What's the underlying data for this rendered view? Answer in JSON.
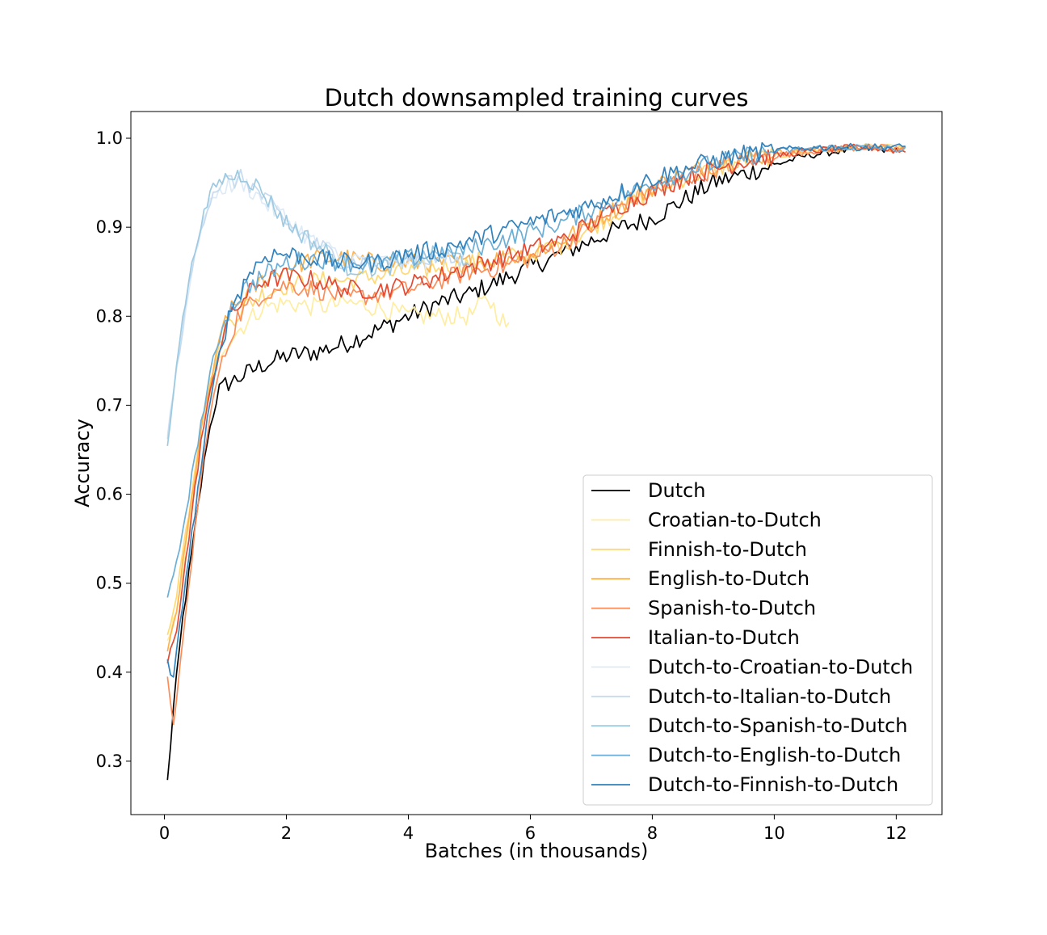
{
  "chart_data": {
    "type": "line",
    "title": "Dutch downsampled training curves",
    "xlabel": "Batches (in thousands)",
    "ylabel": "Accuracy",
    "xlim": [
      -0.55,
      12.75
    ],
    "ylim": [
      0.24,
      1.03
    ],
    "xticks": [
      0,
      2,
      4,
      6,
      8,
      10,
      12
    ],
    "xtick_labels": [
      "0",
      "2",
      "4",
      "6",
      "8",
      "10",
      "12"
    ],
    "yticks": [
      0.3,
      0.4,
      0.5,
      0.6,
      0.7,
      0.8,
      0.9,
      1.0
    ],
    "ytick_labels": [
      "0.3",
      "0.4",
      "0.5",
      "0.6",
      "0.7",
      "0.8",
      "0.9",
      "1.0"
    ],
    "grid": false,
    "legend_position": "lower-right",
    "series": [
      {
        "name": "Dutch",
        "color": "#000000",
        "x_end": 12.15,
        "anchors": [
          [
            0.05,
            0.277
          ],
          [
            0.15,
            0.36
          ],
          [
            0.3,
            0.46
          ],
          [
            0.5,
            0.56
          ],
          [
            0.7,
            0.66
          ],
          [
            0.9,
            0.72
          ],
          [
            1.2,
            0.73
          ],
          [
            1.6,
            0.745
          ],
          [
            2,
            0.755
          ],
          [
            2.5,
            0.76
          ],
          [
            3,
            0.77
          ],
          [
            3.5,
            0.785
          ],
          [
            4,
            0.8
          ],
          [
            4.5,
            0.815
          ],
          [
            5,
            0.825
          ],
          [
            5.5,
            0.84
          ],
          [
            6,
            0.855
          ],
          [
            6.5,
            0.87
          ],
          [
            7,
            0.885
          ],
          [
            7.5,
            0.9
          ],
          [
            8,
            0.91
          ],
          [
            8.5,
            0.93
          ],
          [
            9,
            0.95
          ],
          [
            9.5,
            0.96
          ],
          [
            10,
            0.97
          ],
          [
            10.5,
            0.98
          ],
          [
            11,
            0.985
          ],
          [
            11.5,
            0.988
          ],
          [
            12.15,
            0.987
          ]
        ]
      },
      {
        "name": "Croatian-to-Dutch",
        "color": "#ffeda0",
        "x_end": 5.65,
        "anchors": [
          [
            0.05,
            0.43
          ],
          [
            0.2,
            0.47
          ],
          [
            0.4,
            0.56
          ],
          [
            0.6,
            0.67
          ],
          [
            0.8,
            0.73
          ],
          [
            1,
            0.77
          ],
          [
            1.3,
            0.79
          ],
          [
            1.6,
            0.81
          ],
          [
            2,
            0.815
          ],
          [
            2.5,
            0.81
          ],
          [
            3,
            0.815
          ],
          [
            3.5,
            0.81
          ],
          [
            4,
            0.8
          ],
          [
            4.5,
            0.8
          ],
          [
            5,
            0.8
          ],
          [
            5.3,
            0.82
          ],
          [
            5.65,
            0.785
          ]
        ]
      },
      {
        "name": "Finnish-to-Dutch",
        "color": "#fed976",
        "x_end": 12.15,
        "anchors": [
          [
            0.05,
            0.44
          ],
          [
            0.2,
            0.49
          ],
          [
            0.4,
            0.58
          ],
          [
            0.6,
            0.68
          ],
          [
            0.8,
            0.74
          ],
          [
            1,
            0.79
          ],
          [
            1.3,
            0.81
          ],
          [
            1.6,
            0.825
          ],
          [
            2,
            0.835
          ],
          [
            2.5,
            0.84
          ],
          [
            3,
            0.84
          ],
          [
            3.5,
            0.845
          ],
          [
            4,
            0.85
          ],
          [
            4.5,
            0.855
          ],
          [
            5,
            0.86
          ],
          [
            5.5,
            0.865
          ],
          [
            6,
            0.87
          ],
          [
            6.5,
            0.88
          ],
          [
            7,
            0.9
          ],
          [
            7.5,
            0.92
          ],
          [
            8,
            0.94
          ],
          [
            8.5,
            0.955
          ],
          [
            9,
            0.965
          ],
          [
            9.5,
            0.975
          ],
          [
            10,
            0.98
          ],
          [
            10.5,
            0.985
          ],
          [
            11,
            0.988
          ],
          [
            11.5,
            0.99
          ],
          [
            12.15,
            0.988
          ]
        ]
      },
      {
        "name": "English-to-Dutch",
        "color": "#feb24c",
        "x_end": 12.15,
        "anchors": [
          [
            0.05,
            0.42
          ],
          [
            0.2,
            0.47
          ],
          [
            0.4,
            0.57
          ],
          [
            0.6,
            0.67
          ],
          [
            0.8,
            0.74
          ],
          [
            1,
            0.8
          ],
          [
            1.3,
            0.82
          ],
          [
            1.6,
            0.84
          ],
          [
            2,
            0.855
          ],
          [
            2.5,
            0.865
          ],
          [
            3,
            0.865
          ],
          [
            3.5,
            0.86
          ],
          [
            4,
            0.86
          ],
          [
            4.5,
            0.86
          ],
          [
            5,
            0.86
          ],
          [
            5.5,
            0.865
          ],
          [
            6,
            0.87
          ],
          [
            6.5,
            0.885
          ],
          [
            7,
            0.905
          ],
          [
            7.5,
            0.925
          ],
          [
            8,
            0.945
          ],
          [
            8.5,
            0.96
          ],
          [
            9,
            0.97
          ],
          [
            9.5,
            0.978
          ],
          [
            10,
            0.983
          ],
          [
            10.5,
            0.986
          ],
          [
            11,
            0.988
          ],
          [
            11.5,
            0.99
          ],
          [
            12.15,
            0.987
          ]
        ]
      },
      {
        "name": "Spanish-to-Dutch",
        "color": "#fc8d59",
        "x_end": 12.15,
        "anchors": [
          [
            0.05,
            0.39
          ],
          [
            0.15,
            0.345
          ],
          [
            0.3,
            0.43
          ],
          [
            0.5,
            0.56
          ],
          [
            0.7,
            0.67
          ],
          [
            0.9,
            0.74
          ],
          [
            1.2,
            0.8
          ],
          [
            1.6,
            0.825
          ],
          [
            2,
            0.835
          ],
          [
            2.5,
            0.83
          ],
          [
            3,
            0.82
          ],
          [
            3.5,
            0.825
          ],
          [
            4,
            0.83
          ],
          [
            4.5,
            0.84
          ],
          [
            5,
            0.85
          ],
          [
            5.5,
            0.855
          ],
          [
            6,
            0.865
          ],
          [
            6.5,
            0.88
          ],
          [
            7,
            0.9
          ],
          [
            7.5,
            0.925
          ],
          [
            8,
            0.94
          ],
          [
            8.5,
            0.955
          ],
          [
            9,
            0.965
          ],
          [
            9.5,
            0.975
          ],
          [
            10,
            0.98
          ],
          [
            10.5,
            0.985
          ],
          [
            11,
            0.988
          ],
          [
            11.5,
            0.99
          ],
          [
            12.15,
            0.988
          ]
        ]
      },
      {
        "name": "Italian-to-Dutch",
        "color": "#e34a33",
        "x_end": 12.15,
        "anchors": [
          [
            0.05,
            0.41
          ],
          [
            0.2,
            0.45
          ],
          [
            0.4,
            0.55
          ],
          [
            0.6,
            0.66
          ],
          [
            0.8,
            0.73
          ],
          [
            1,
            0.79
          ],
          [
            1.3,
            0.82
          ],
          [
            1.6,
            0.84
          ],
          [
            2,
            0.845
          ],
          [
            2.5,
            0.84
          ],
          [
            3,
            0.83
          ],
          [
            3.5,
            0.83
          ],
          [
            4,
            0.835
          ],
          [
            4.5,
            0.845
          ],
          [
            5,
            0.855
          ],
          [
            5.5,
            0.865
          ],
          [
            6,
            0.875
          ],
          [
            6.5,
            0.885
          ],
          [
            7,
            0.905
          ],
          [
            7.5,
            0.925
          ],
          [
            8,
            0.94
          ],
          [
            8.5,
            0.955
          ],
          [
            9,
            0.965
          ],
          [
            9.5,
            0.975
          ],
          [
            10,
            0.98
          ],
          [
            10.5,
            0.985
          ],
          [
            11,
            0.988
          ],
          [
            11.5,
            0.99
          ],
          [
            12.15,
            0.985
          ]
        ]
      },
      {
        "name": "Dutch-to-Croatian-to-Dutch",
        "color": "#deebf7",
        "x_end": 4.3,
        "anchors": [
          [
            0.05,
            0.67
          ],
          [
            0.2,
            0.74
          ],
          [
            0.4,
            0.83
          ],
          [
            0.6,
            0.9
          ],
          [
            0.8,
            0.935
          ],
          [
            1,
            0.945
          ],
          [
            1.3,
            0.95
          ],
          [
            1.6,
            0.93
          ],
          [
            2,
            0.91
          ],
          [
            2.5,
            0.88
          ],
          [
            3,
            0.865
          ],
          [
            3.5,
            0.86
          ],
          [
            4,
            0.865
          ],
          [
            4.3,
            0.86
          ]
        ]
      },
      {
        "name": "Dutch-to-Italian-to-Dutch",
        "color": "#c6dbef",
        "x_end": 4.9,
        "anchors": [
          [
            0.05,
            0.66
          ],
          [
            0.2,
            0.74
          ],
          [
            0.4,
            0.835
          ],
          [
            0.6,
            0.9
          ],
          [
            0.8,
            0.94
          ],
          [
            1,
            0.95
          ],
          [
            1.3,
            0.955
          ],
          [
            1.6,
            0.935
          ],
          [
            2,
            0.905
          ],
          [
            2.5,
            0.88
          ],
          [
            3,
            0.86
          ],
          [
            3.5,
            0.86
          ],
          [
            4,
            0.865
          ],
          [
            4.5,
            0.865
          ],
          [
            4.9,
            0.862
          ]
        ]
      },
      {
        "name": "Dutch-to-Spanish-to-Dutch",
        "color": "#9ecae1",
        "x_end": 5.0,
        "anchors": [
          [
            0.05,
            0.655
          ],
          [
            0.2,
            0.75
          ],
          [
            0.4,
            0.84
          ],
          [
            0.6,
            0.905
          ],
          [
            0.8,
            0.945
          ],
          [
            1,
            0.955
          ],
          [
            1.3,
            0.96
          ],
          [
            1.6,
            0.94
          ],
          [
            2,
            0.905
          ],
          [
            2.5,
            0.88
          ],
          [
            3,
            0.855
          ],
          [
            3.5,
            0.855
          ],
          [
            4,
            0.86
          ],
          [
            4.5,
            0.87
          ],
          [
            5,
            0.865
          ]
        ]
      },
      {
        "name": "Dutch-to-English-to-Dutch",
        "color": "#6baed6",
        "x_end": 12.15,
        "anchors": [
          [
            0.05,
            0.48
          ],
          [
            0.2,
            0.52
          ],
          [
            0.4,
            0.6
          ],
          [
            0.6,
            0.68
          ],
          [
            0.8,
            0.75
          ],
          [
            1,
            0.8
          ],
          [
            1.3,
            0.83
          ],
          [
            1.6,
            0.845
          ],
          [
            2,
            0.86
          ],
          [
            2.5,
            0.865
          ],
          [
            3,
            0.86
          ],
          [
            3.5,
            0.86
          ],
          [
            4,
            0.865
          ],
          [
            4.5,
            0.87
          ],
          [
            5,
            0.875
          ],
          [
            5.5,
            0.885
          ],
          [
            6,
            0.895
          ],
          [
            6.5,
            0.905
          ],
          [
            7,
            0.92
          ],
          [
            7.5,
            0.935
          ],
          [
            8,
            0.95
          ],
          [
            8.5,
            0.962
          ],
          [
            9,
            0.972
          ],
          [
            9.5,
            0.98
          ],
          [
            10,
            0.985
          ],
          [
            10.5,
            0.988
          ],
          [
            11,
            0.99
          ],
          [
            11.5,
            0.99
          ],
          [
            12.15,
            0.987
          ]
        ]
      },
      {
        "name": "Dutch-to-Finnish-to-Dutch",
        "color": "#3182bd",
        "x_end": 12.15,
        "anchors": [
          [
            0.05,
            0.41
          ],
          [
            0.15,
            0.39
          ],
          [
            0.3,
            0.48
          ],
          [
            0.5,
            0.58
          ],
          [
            0.7,
            0.68
          ],
          [
            0.9,
            0.76
          ],
          [
            1.1,
            0.81
          ],
          [
            1.4,
            0.85
          ],
          [
            1.7,
            0.87
          ],
          [
            2,
            0.87
          ],
          [
            2.5,
            0.865
          ],
          [
            3,
            0.86
          ],
          [
            3.5,
            0.86
          ],
          [
            4,
            0.87
          ],
          [
            4.5,
            0.875
          ],
          [
            5,
            0.885
          ],
          [
            5.5,
            0.895
          ],
          [
            6,
            0.905
          ],
          [
            6.5,
            0.915
          ],
          [
            7,
            0.925
          ],
          [
            7.5,
            0.94
          ],
          [
            8,
            0.955
          ],
          [
            8.5,
            0.965
          ],
          [
            9,
            0.975
          ],
          [
            9.5,
            0.982
          ],
          [
            10,
            0.986
          ],
          [
            10.5,
            0.989
          ],
          [
            11,
            0.99
          ],
          [
            11.5,
            0.99
          ],
          [
            12.15,
            0.99
          ]
        ]
      }
    ]
  }
}
